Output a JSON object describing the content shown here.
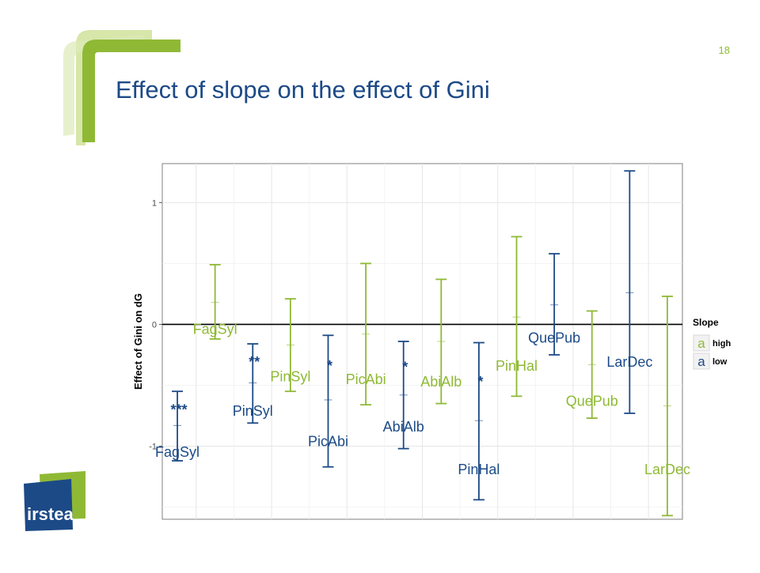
{
  "slide": {
    "number": "18",
    "title": "Effect of slope on the effect of Gini",
    "logo_text": "irstea",
    "colors": {
      "brand_green": "#8fb935",
      "brand_blue": "#1c4a87"
    }
  },
  "chart_data": {
    "type": "errorbar",
    "ylabel": "Effect of Gini on dG",
    "xlabel": "",
    "ylim": [
      -1.6,
      1.32
    ],
    "yticks": [
      {
        "value": 1,
        "label": "1"
      },
      {
        "value": 0,
        "label": "0"
      },
      {
        "value": -1,
        "label": "-1"
      }
    ],
    "reference_line": 0,
    "grid": true,
    "legend": {
      "title": "Slope",
      "position": "right",
      "glyph": "a",
      "items": [
        {
          "label": "high",
          "color": "#8fb935"
        },
        {
          "label": "low",
          "color": "#1c4a87"
        }
      ]
    },
    "series": [
      {
        "name": "high",
        "color": "#8fb935",
        "points": [
          {
            "species": "FagSyl",
            "x": 1.25,
            "mean": 0.18,
            "lower": -0.12,
            "upper": 0.49,
            "label": "FagSyl",
            "label_y": -0.04,
            "stars": ""
          },
          {
            "species": "PinSyl",
            "x": 2.25,
            "mean": -0.17,
            "lower": -0.55,
            "upper": 0.21,
            "label": "PinSyl",
            "label_y": -0.43,
            "stars": ""
          },
          {
            "species": "PicAbi",
            "x": 3.25,
            "mean": -0.08,
            "lower": -0.66,
            "upper": 0.5,
            "label": "PicAbi",
            "label_y": -0.45,
            "stars": ""
          },
          {
            "species": "AbiAlb",
            "x": 4.25,
            "mean": -0.14,
            "lower": -0.65,
            "upper": 0.37,
            "label": "AbiAlb",
            "label_y": -0.47,
            "stars": ""
          },
          {
            "species": "PinHal",
            "x": 5.25,
            "mean": 0.06,
            "lower": -0.59,
            "upper": 0.72,
            "label": "PinHal",
            "label_y": -0.34,
            "stars": ""
          },
          {
            "species": "QuePub",
            "x": 6.25,
            "mean": -0.33,
            "lower": -0.77,
            "upper": 0.11,
            "label": "QuePub",
            "label_y": -0.63,
            "stars": ""
          },
          {
            "species": "LarDec",
            "x": 7.25,
            "mean": -0.67,
            "lower": -1.57,
            "upper": 0.23,
            "label": "LarDec",
            "label_y": -1.19,
            "stars": ""
          }
        ]
      },
      {
        "name": "low",
        "color": "#1c4a87",
        "points": [
          {
            "species": "FagSyl",
            "x": 0.75,
            "mean": -0.83,
            "lower": -1.12,
            "upper": -0.55,
            "label": "FagSyl",
            "label_y": -1.05,
            "stars": "***",
            "stars_y": -0.7
          },
          {
            "species": "PinSyl",
            "x": 1.75,
            "mean": -0.48,
            "lower": -0.81,
            "upper": -0.16,
            "label": "PinSyl",
            "label_y": -0.71,
            "stars": "**",
            "stars_y": -0.31
          },
          {
            "species": "PicAbi",
            "x": 2.75,
            "mean": -0.62,
            "lower": -1.17,
            "upper": -0.09,
            "label": "PicAbi",
            "label_y": -0.96,
            "stars": "*",
            "stars_y": -0.34
          },
          {
            "species": "AbiAlb",
            "x": 3.75,
            "mean": -0.58,
            "lower": -1.02,
            "upper": -0.14,
            "label": "AbiAlb",
            "label_y": -0.84,
            "stars": "*",
            "stars_y": -0.35
          },
          {
            "species": "PinHal",
            "x": 4.75,
            "mean": -0.79,
            "lower": -1.44,
            "upper": -0.15,
            "label": "PinHal",
            "label_y": -1.19,
            "stars": "*",
            "stars_y": -0.47
          },
          {
            "species": "QuePub",
            "x": 5.75,
            "mean": 0.16,
            "lower": -0.25,
            "upper": 0.58,
            "label": "QuePub",
            "label_y": -0.11,
            "stars": ""
          },
          {
            "species": "LarDec",
            "x": 6.75,
            "mean": 0.26,
            "lower": -0.73,
            "upper": 1.26,
            "label": "LarDec",
            "label_y": -0.31,
            "stars": ""
          }
        ]
      }
    ]
  }
}
